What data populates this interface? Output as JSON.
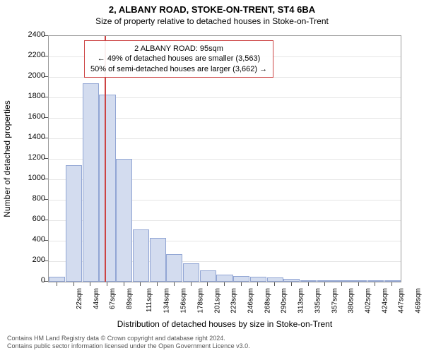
{
  "chart": {
    "type": "histogram",
    "title": "2, ALBANY ROAD, STOKE-ON-TRENT, ST4 6BA",
    "subtitle": "Size of property relative to detached houses in Stoke-on-Trent",
    "xlabel": "Distribution of detached houses by size in Stoke-on-Trent",
    "ylabel": "Number of detached properties",
    "ylim": [
      0,
      2400
    ],
    "ytick_step": 200,
    "background_color": "#ffffff",
    "grid_color": "#e5e5e5",
    "border_color": "#9a9a9a",
    "bar_fill": "#d3dcef",
    "bar_stroke": "#92a6d4",
    "marker_color": "#cc4444",
    "marker_x_value": 95,
    "x_categories": [
      "22sqm",
      "44sqm",
      "67sqm",
      "89sqm",
      "111sqm",
      "134sqm",
      "156sqm",
      "178sqm",
      "201sqm",
      "223sqm",
      "246sqm",
      "268sqm",
      "290sqm",
      "313sqm",
      "335sqm",
      "357sqm",
      "380sqm",
      "402sqm",
      "424sqm",
      "447sqm",
      "469sqm"
    ],
    "values": [
      50,
      1140,
      1940,
      1830,
      1200,
      510,
      430,
      270,
      180,
      110,
      70,
      55,
      45,
      40,
      30,
      15,
      10,
      10,
      8,
      8,
      5
    ],
    "annotation": {
      "line1": "2 ALBANY ROAD: 95sqm",
      "line2": "← 49% of detached houses are smaller (3,563)",
      "line3": "50% of semi-detached houses are larger (3,662) →",
      "box_border": "#cc4444"
    },
    "title_fontsize": 13,
    "subtitle_fontsize": 12,
    "label_fontsize": 12,
    "tick_fontsize": 11,
    "xtick_fontsize": 10
  },
  "footer": {
    "line1": "Contains HM Land Registry data © Crown copyright and database right 2024.",
    "line2": "Contains public sector information licensed under the Open Government Licence v3.0."
  }
}
